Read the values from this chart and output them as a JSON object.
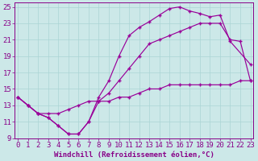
{
  "xlabel": "Windchill (Refroidissement éolien,°C)",
  "bg_color": "#cce8e8",
  "line_color": "#990099",
  "xlim_min": -0.3,
  "xlim_max": 23.3,
  "ylim_min": 9,
  "ylim_max": 25.5,
  "xticks": [
    0,
    1,
    2,
    3,
    4,
    5,
    6,
    7,
    8,
    9,
    10,
    11,
    12,
    13,
    14,
    15,
    16,
    17,
    18,
    19,
    20,
    21,
    22,
    23
  ],
  "yticks": [
    9,
    11,
    13,
    15,
    17,
    19,
    21,
    23,
    25
  ],
  "curve1_x": [
    0,
    1,
    2,
    3,
    4,
    5,
    6,
    7,
    8,
    9,
    10,
    11,
    12,
    13,
    14,
    15,
    16,
    17,
    18,
    19,
    20,
    21,
    23
  ],
  "curve1_y": [
    14.0,
    13.0,
    12.0,
    11.5,
    10.5,
    9.5,
    9.5,
    11.0,
    14.0,
    16.0,
    19.0,
    21.5,
    22.5,
    23.2,
    24.0,
    24.8,
    25.0,
    24.5,
    24.2,
    23.8,
    24.0,
    20.8,
    18.0
  ],
  "curve2_x": [
    0,
    1,
    2,
    3,
    4,
    5,
    6,
    7,
    8,
    9,
    10,
    11,
    12,
    13,
    14,
    15,
    16,
    17,
    18,
    19,
    20,
    21,
    22,
    23
  ],
  "curve2_y": [
    14.0,
    13.0,
    12.0,
    11.5,
    10.5,
    9.5,
    9.5,
    11.0,
    13.5,
    14.5,
    16.0,
    17.5,
    19.0,
    20.5,
    21.0,
    21.5,
    22.0,
    22.5,
    23.0,
    23.0,
    23.0,
    21.0,
    20.8,
    16.0
  ],
  "curve3_x": [
    0,
    1,
    2,
    3,
    4,
    5,
    6,
    7,
    8,
    9,
    10,
    11,
    12,
    13,
    14,
    15,
    16,
    17,
    18,
    19,
    20,
    21,
    22,
    23
  ],
  "curve3_y": [
    14.0,
    13.0,
    12.0,
    12.0,
    12.0,
    12.5,
    13.0,
    13.5,
    13.5,
    13.5,
    14.0,
    14.0,
    14.5,
    15.0,
    15.0,
    15.5,
    15.5,
    15.5,
    15.5,
    15.5,
    15.5,
    15.5,
    16.0,
    16.0
  ],
  "grid_color": "#aad4d4",
  "font_color": "#880088",
  "font_size": 6.5
}
